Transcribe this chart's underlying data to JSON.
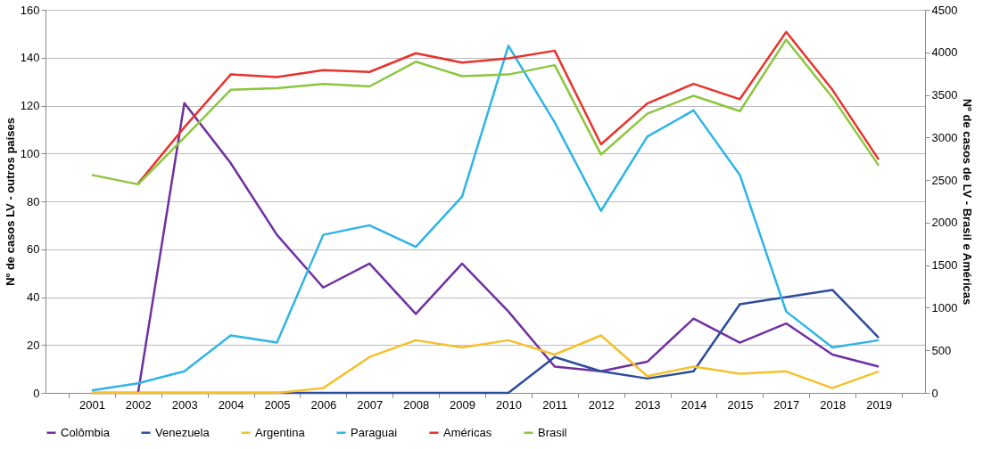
{
  "chart_data": {
    "type": "line",
    "ylabel": "Nº de casos LV - outros países",
    "y2label": "Nº de casos de LV - Brasil e Américas",
    "categories": [
      "2001",
      "2002",
      "2003",
      "2004",
      "2005",
      "2006",
      "2007",
      "2008",
      "2009",
      "2010",
      "2011",
      "2012",
      "2013",
      "2014",
      "2015",
      "2017",
      "2018",
      "2019"
    ],
    "series": [
      {
        "name": "Colômbia",
        "color": "#7030a0",
        "values": [
          null,
          0,
          121,
          96,
          66,
          44,
          54,
          33,
          54,
          34,
          11,
          9,
          13,
          31,
          21,
          29,
          16,
          11
        ]
      },
      {
        "name": "Venezuela",
        "color": "#2e4d9c",
        "values": [
          0,
          0,
          0,
          0,
          0,
          0,
          0,
          0,
          0,
          0,
          15,
          9,
          6,
          9,
          37,
          40,
          43,
          23
        ]
      },
      {
        "name": "Argentina",
        "color": "#f5c02c",
        "values": [
          0,
          0,
          0,
          0,
          0,
          2,
          15,
          22,
          19,
          22,
          16,
          24,
          7,
          11,
          8,
          9,
          2,
          9
        ]
      },
      {
        "name": "Paraguai",
        "color": "#2eb4e6",
        "values": [
          1,
          4,
          9,
          24,
          21,
          66,
          70,
          61,
          82,
          145,
          113,
          76,
          107,
          118,
          91,
          34,
          19,
          22
        ]
      },
      {
        "name": "Américas",
        "color": "#e8322b",
        "axis": "y2",
        "values": [
          null,
          2460,
          3120,
          3740,
          3710,
          3790,
          3770,
          3990,
          3880,
          3930,
          4020,
          2920,
          3400,
          3630,
          3450,
          4240,
          3560,
          2740
        ]
      },
      {
        "name": "Brasil",
        "color": "#8cc63f",
        "axis": "y2",
        "values": [
          2560,
          2450,
          3000,
          3560,
          3580,
          3630,
          3600,
          3890,
          3720,
          3740,
          3850,
          2800,
          3280,
          3490,
          3310,
          4150,
          3470,
          2670
        ]
      }
    ],
    "ylim": [
      0,
      160
    ],
    "yticks": [
      0,
      20,
      40,
      60,
      80,
      100,
      120,
      140,
      160
    ],
    "y2lim": [
      0,
      4500
    ],
    "y2ticks": [
      0,
      500,
      1000,
      1500,
      2000,
      2500,
      3000,
      3500,
      4000,
      4500
    ],
    "grid": "y",
    "legend": "bottom",
    "marker": "none",
    "line_style": "solid"
  }
}
